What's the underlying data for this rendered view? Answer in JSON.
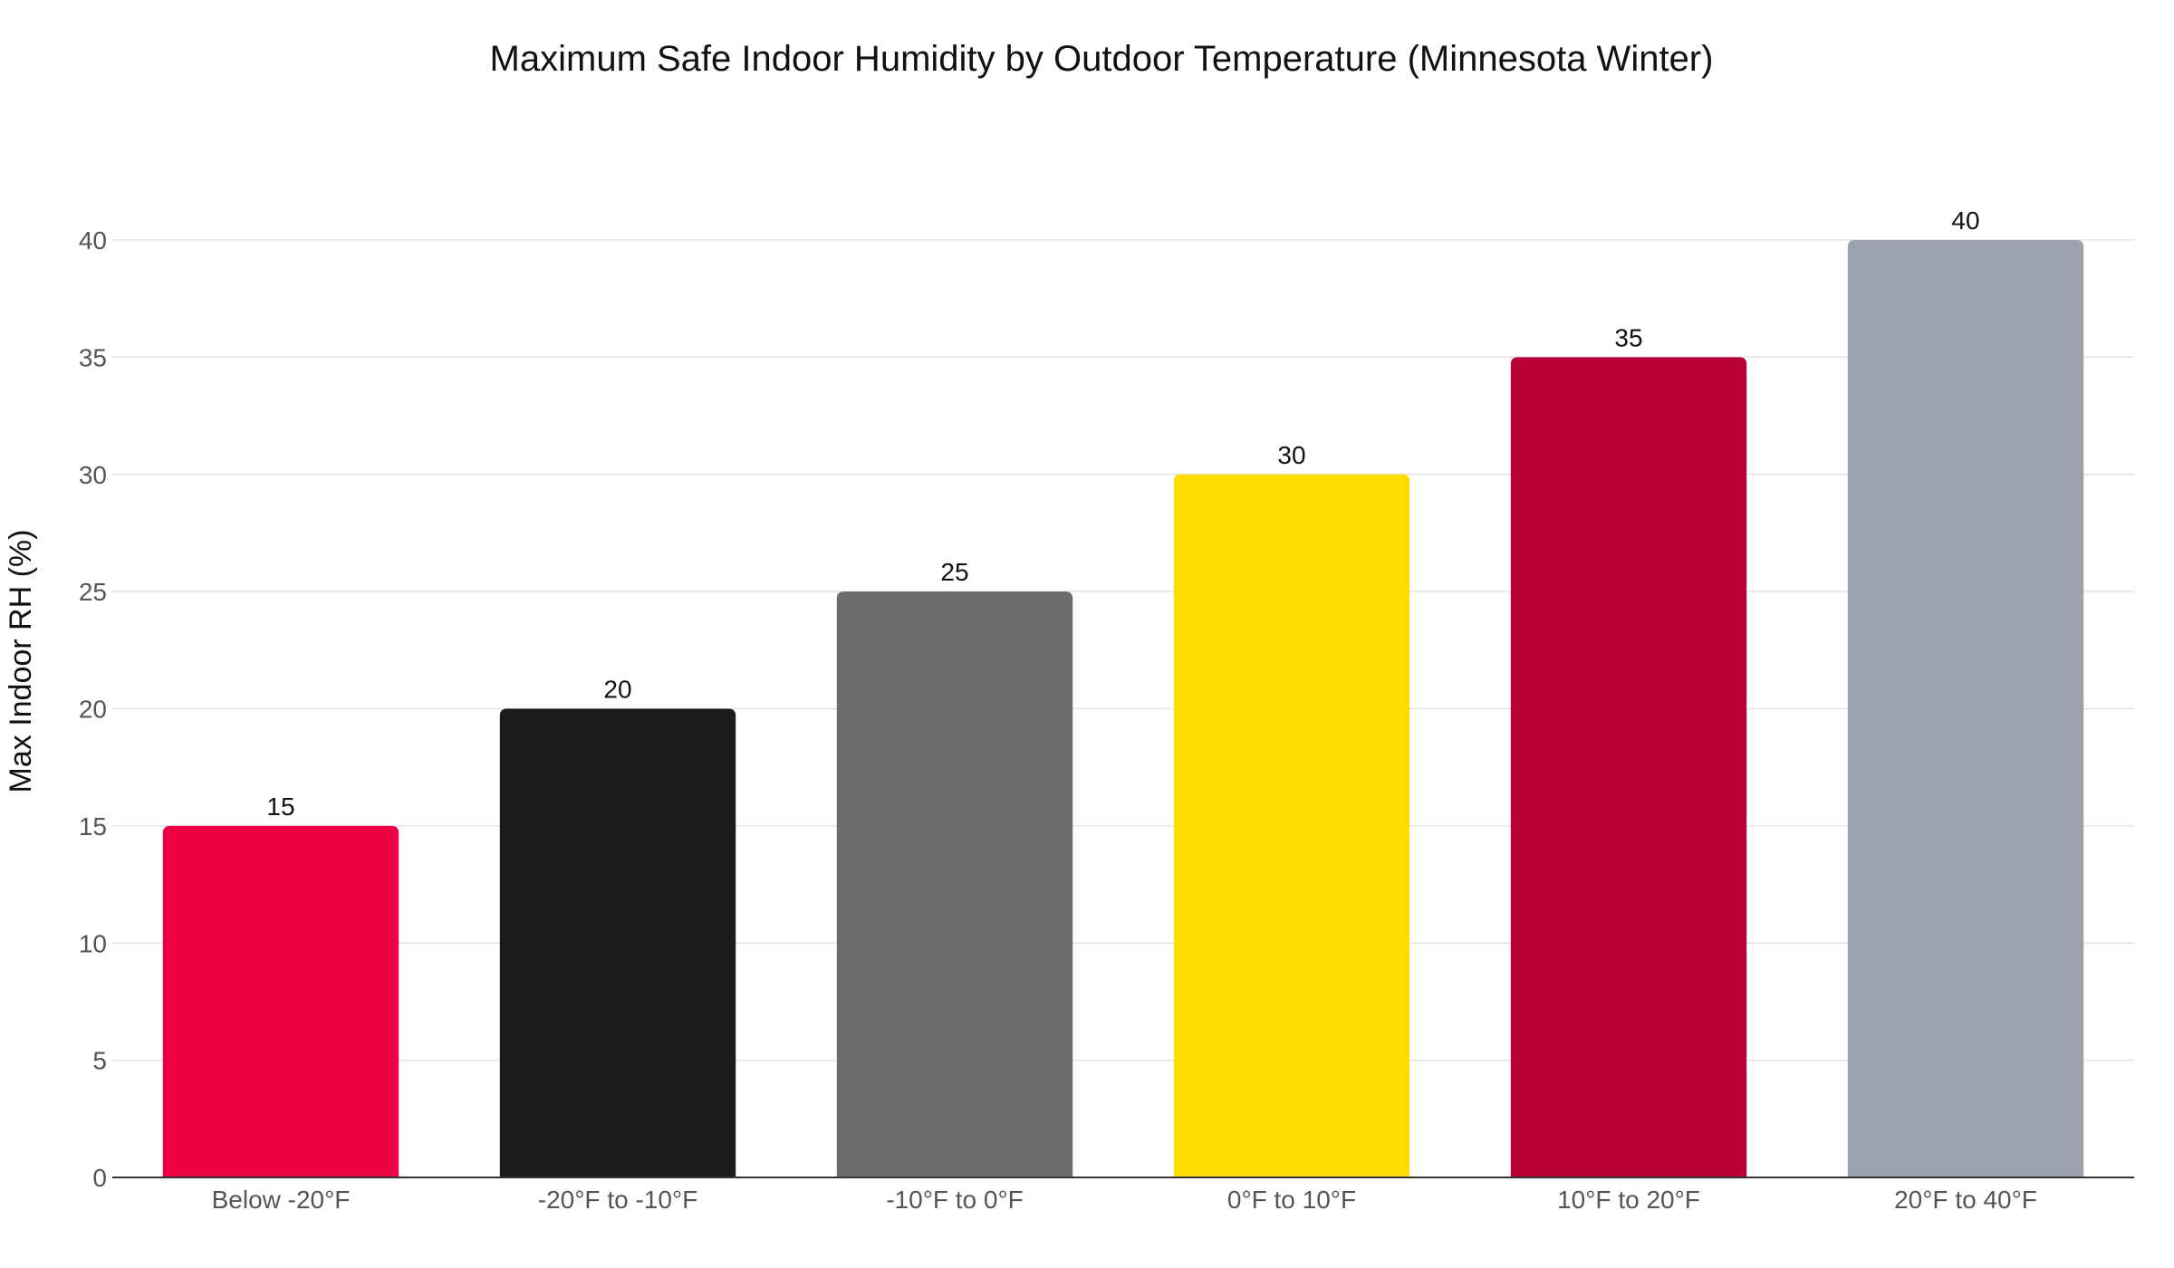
{
  "chart_data": {
    "type": "bar",
    "title": "Maximum Safe Indoor Humidity by Outdoor Temperature (Minnesota Winter)",
    "xlabel": "",
    "ylabel": "Max Indoor RH (%)",
    "categories": [
      "Below -20°F",
      "-20°F to -10°F",
      "-10°F to 0°F",
      "0°F to 10°F",
      "10°F to 20°F",
      "20°F to 40°F"
    ],
    "values": [
      15,
      20,
      25,
      30,
      35,
      40
    ],
    "colors": [
      "#EC0044",
      "#1C1C1C",
      "#6C6C6C",
      "#FFDD00",
      "#B80035",
      "#9CA2AD"
    ],
    "ylim": [
      0,
      40
    ],
    "yticks": [
      0,
      5,
      10,
      15,
      20,
      25,
      30,
      35,
      40
    ],
    "grid": true,
    "legend": "none",
    "data_labels": true
  }
}
